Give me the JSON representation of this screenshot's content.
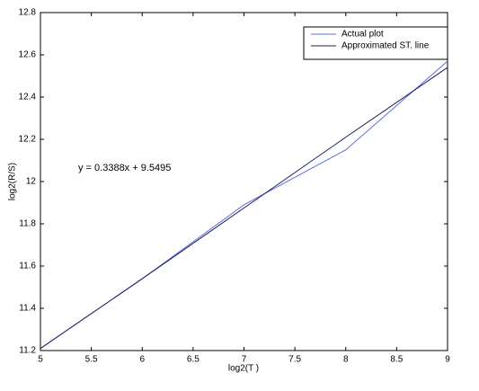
{
  "chart_data": {
    "type": "line",
    "x_label": "log2(T )",
    "y_label": "log2(R/S)",
    "annotation": "y = 0.3388x + 9.5495",
    "x": [
      5,
      6,
      7,
      8,
      9
    ],
    "series": [
      {
        "name": "Actual plot",
        "color": "#5b6fe3",
        "values": [
          11.21,
          11.54,
          11.89,
          12.15,
          12.57
        ]
      },
      {
        "name": "Approximated ST. line",
        "color": "#1c1c5c",
        "values": [
          11.21,
          11.54,
          11.875,
          12.21,
          12.54
        ]
      }
    ],
    "xlim": [
      5,
      9
    ],
    "xticks": [
      5,
      5.5,
      6,
      6.5,
      7,
      7.5,
      8,
      8.5,
      9
    ],
    "ylim": [
      11.2,
      12.8
    ],
    "yticks": [
      11.2,
      11.4,
      11.6,
      11.8,
      12,
      12.2,
      12.4,
      12.6,
      12.8
    ],
    "legend": "upper right"
  }
}
